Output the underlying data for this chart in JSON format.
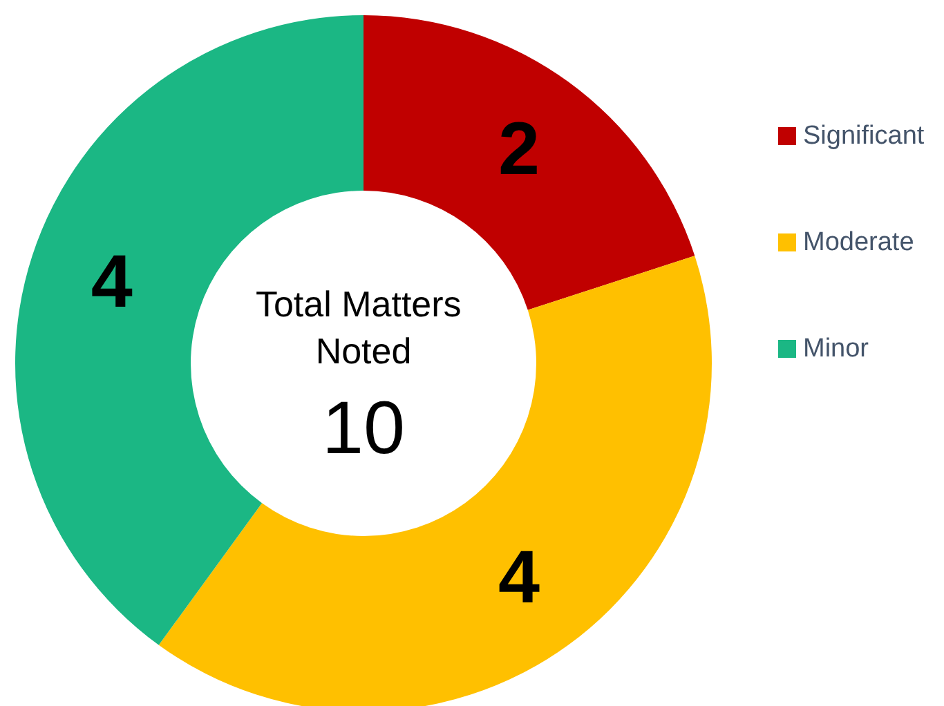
{
  "chart_data": {
    "type": "donut",
    "categories": [
      "Significant",
      "Moderate",
      "Minor"
    ],
    "values": [
      2,
      4,
      4
    ],
    "colors": [
      "#c00000",
      "#ffc000",
      "#1bb784"
    ],
    "data_labels": true,
    "legend": "right",
    "annotations": [
      "Total Matters Noted",
      "10"
    ]
  }
}
